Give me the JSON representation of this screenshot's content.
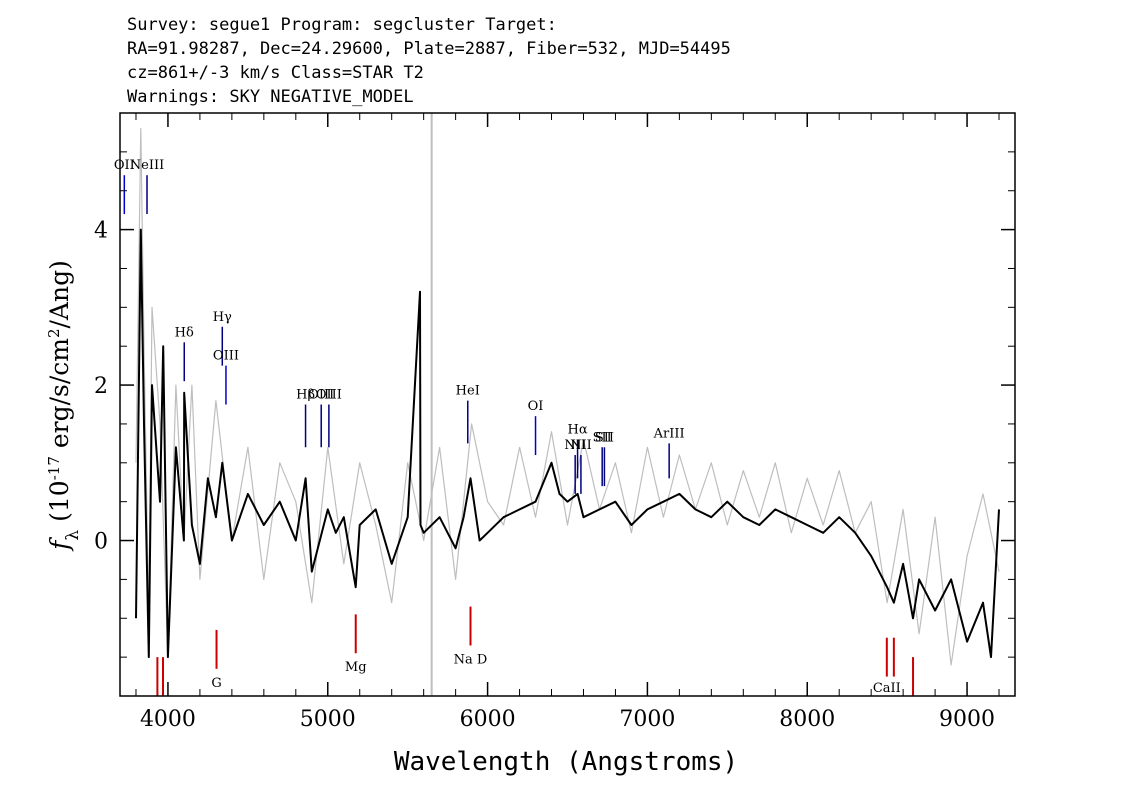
{
  "header": {
    "line1": "Survey: segue1 Program: segcluster Target:",
    "line2": "RA=91.98287, Dec=24.29600, Plate=2887, Fiber=532, MJD=54495",
    "line3": "cz=861+/-3 km/s Class=STAR T2",
    "line4": "Warnings: SKY NEGATIVE_MODEL"
  },
  "chart_data": {
    "type": "line",
    "title": "",
    "xlabel": "Wavelength (Angstroms)",
    "ylabel": "f_λ (10^-17 erg/s/cm^2/Ang)",
    "xlim": [
      3700,
      9300
    ],
    "ylim": [
      -2.0,
      5.5
    ],
    "x_ticks": [
      4000,
      5000,
      6000,
      7000,
      8000,
      9000
    ],
    "y_ticks": [
      0,
      2,
      4
    ],
    "grid": false,
    "series": [
      {
        "role": "flux",
        "color": "#bebebe",
        "x": [
          3800,
          3830,
          3850,
          3880,
          3900,
          3950,
          4000,
          4050,
          4100,
          4150,
          4200,
          4300,
          4400,
          4500,
          4600,
          4700,
          4800,
          4900,
          5000,
          5100,
          5200,
          5300,
          5400,
          5500,
          5600,
          5700,
          5800,
          5900,
          6000,
          6100,
          6200,
          6300,
          6400,
          6500,
          6600,
          6700,
          6800,
          6900,
          7000,
          7100,
          7200,
          7300,
          7400,
          7500,
          7600,
          7700,
          7800,
          7900,
          8000,
          8100,
          8200,
          8300,
          8400,
          8500,
          8600,
          8700,
          8800,
          8900,
          9000,
          9100,
          9200
        ],
        "y": [
          1.0,
          5.3,
          2.5,
          -1.0,
          3.0,
          1.5,
          -1.5,
          2.0,
          0.0,
          2.0,
          -0.5,
          1.8,
          0.0,
          1.2,
          -0.5,
          1.0,
          0.5,
          -0.8,
          1.2,
          -0.3,
          1.0,
          0.2,
          -0.8,
          1.0,
          0.0,
          1.2,
          -0.5,
          1.5,
          0.5,
          0.2,
          1.2,
          0.3,
          1.4,
          0.2,
          1.3,
          0.4,
          1.0,
          0.1,
          1.2,
          0.3,
          1.1,
          0.4,
          1.0,
          0.2,
          0.9,
          0.3,
          1.0,
          0.1,
          0.8,
          0.2,
          0.9,
          0.1,
          0.5,
          -0.8,
          0.4,
          -1.2,
          0.3,
          -1.6,
          -0.2,
          0.6,
          -0.4
        ]
      },
      {
        "role": "model",
        "color": "#000000",
        "x": [
          3800,
          3830,
          3850,
          3880,
          3900,
          3950,
          3970,
          4000,
          4050,
          4100,
          4102,
          4150,
          4200,
          4250,
          4300,
          4340,
          4400,
          4500,
          4600,
          4700,
          4800,
          4861,
          4900,
          5000,
          5050,
          5100,
          5175,
          5200,
          5300,
          5400,
          5500,
          5577,
          5580,
          5600,
          5700,
          5800,
          5850,
          5893,
          5950,
          6000,
          6100,
          6200,
          6300,
          6400,
          6450,
          6500,
          6563,
          6600,
          6700,
          6800,
          6900,
          7000,
          7100,
          7200,
          7300,
          7400,
          7500,
          7600,
          7700,
          7800,
          7900,
          8000,
          8100,
          8200,
          8300,
          8400,
          8500,
          8542,
          8600,
          8662,
          8700,
          8800,
          8900,
          9000,
          9100,
          9150,
          9200
        ],
        "y": [
          -1.0,
          4.0,
          1.5,
          -1.5,
          2.0,
          0.5,
          2.5,
          -1.5,
          1.2,
          0.0,
          1.9,
          0.2,
          -0.3,
          0.8,
          0.3,
          1.0,
          0.0,
          0.6,
          0.2,
          0.5,
          0.0,
          0.8,
          -0.4,
          0.4,
          0.1,
          0.3,
          -0.6,
          0.2,
          0.4,
          -0.3,
          0.3,
          3.2,
          0.2,
          0.1,
          0.3,
          -0.1,
          0.3,
          0.8,
          0.0,
          0.1,
          0.3,
          0.4,
          0.5,
          1.0,
          0.6,
          0.5,
          0.6,
          0.3,
          0.4,
          0.5,
          0.2,
          0.4,
          0.5,
          0.6,
          0.4,
          0.3,
          0.5,
          0.3,
          0.2,
          0.4,
          0.3,
          0.2,
          0.1,
          0.3,
          0.1,
          -0.2,
          -0.6,
          -0.8,
          -0.3,
          -1.0,
          -0.5,
          -0.9,
          -0.5,
          -1.3,
          -0.8,
          -1.5,
          0.4
        ]
      }
    ],
    "sky_line": {
      "x": 5650,
      "color": "#bebebe"
    },
    "emission_lines": [
      {
        "label": "OII",
        "x": 3727,
        "y0": 4.2,
        "y1": 4.7,
        "color": "#0000cc"
      },
      {
        "label": "NeIII",
        "x": 3869,
        "y0": 4.2,
        "y1": 4.7,
        "color": "#000080"
      },
      {
        "label": "Hδ",
        "x": 4102,
        "y0": 2.05,
        "y1": 2.55,
        "color": "#000080"
      },
      {
        "label": "Hγ",
        "x": 4340,
        "y0": 2.25,
        "y1": 2.75,
        "color": "#000080"
      },
      {
        "label": "OIII",
        "x": 4363,
        "y0": 1.75,
        "y1": 2.25,
        "color": "#0000cc"
      },
      {
        "label": "Hβ",
        "x": 4861,
        "y0": 1.2,
        "y1": 1.75,
        "color": "#000080"
      },
      {
        "label": "OIII",
        "x": 4959,
        "y0": 1.2,
        "y1": 1.75,
        "color": "#000080"
      },
      {
        "label": "OIII",
        "x": 5007,
        "y0": 1.2,
        "y1": 1.75,
        "color": "#000080"
      },
      {
        "label": "HeI",
        "x": 5876,
        "y0": 1.25,
        "y1": 1.8,
        "color": "#000080"
      },
      {
        "label": "OI",
        "x": 6300,
        "y0": 1.1,
        "y1": 1.6,
        "color": "#0000cc"
      },
      {
        "label": "NII",
        "x": 6548,
        "y0": 0.6,
        "y1": 1.1,
        "color": "#000080"
      },
      {
        "label": "Hα",
        "x": 6563,
        "y0": 0.8,
        "y1": 1.3,
        "color": "#000080"
      },
      {
        "label": "NII",
        "x": 6584,
        "y0": 0.6,
        "y1": 1.1,
        "color": "#000080"
      },
      {
        "label": "SII",
        "x": 6717,
        "y0": 0.7,
        "y1": 1.2,
        "color": "#000080"
      },
      {
        "label": "SII",
        "x": 6731,
        "y0": 0.7,
        "y1": 1.2,
        "color": "#000080"
      },
      {
        "label": "ArIII",
        "x": 7136,
        "y0": 0.8,
        "y1": 1.25,
        "color": "#000080"
      }
    ],
    "absorption_lines": [
      {
        "label": "",
        "x": 3934,
        "y0": -2.0,
        "y1": -1.5,
        "color": "#cc0000"
      },
      {
        "label": "",
        "x": 3969,
        "y0": -2.0,
        "y1": -1.5,
        "color": "#cc0000"
      },
      {
        "label": "G",
        "x": 4304,
        "y0": -1.15,
        "y1": -1.65,
        "color": "#cc0000"
      },
      {
        "label": "Mg",
        "x": 5175,
        "y0": -0.95,
        "y1": -1.45,
        "color": "#cc0000"
      },
      {
        "label": "Na D",
        "x": 5893,
        "y0": -0.85,
        "y1": -1.35,
        "color": "#cc0000"
      },
      {
        "label": "CaII",
        "x": 8498,
        "y0": -1.25,
        "y1": -1.75,
        "color": "#cc0000"
      },
      {
        "label": "",
        "x": 8542,
        "y0": -1.25,
        "y1": -1.75,
        "color": "#cc0000"
      },
      {
        "label": "",
        "x": 8662,
        "y0": -1.5,
        "y1": -2.0,
        "color": "#cc0000"
      }
    ]
  }
}
